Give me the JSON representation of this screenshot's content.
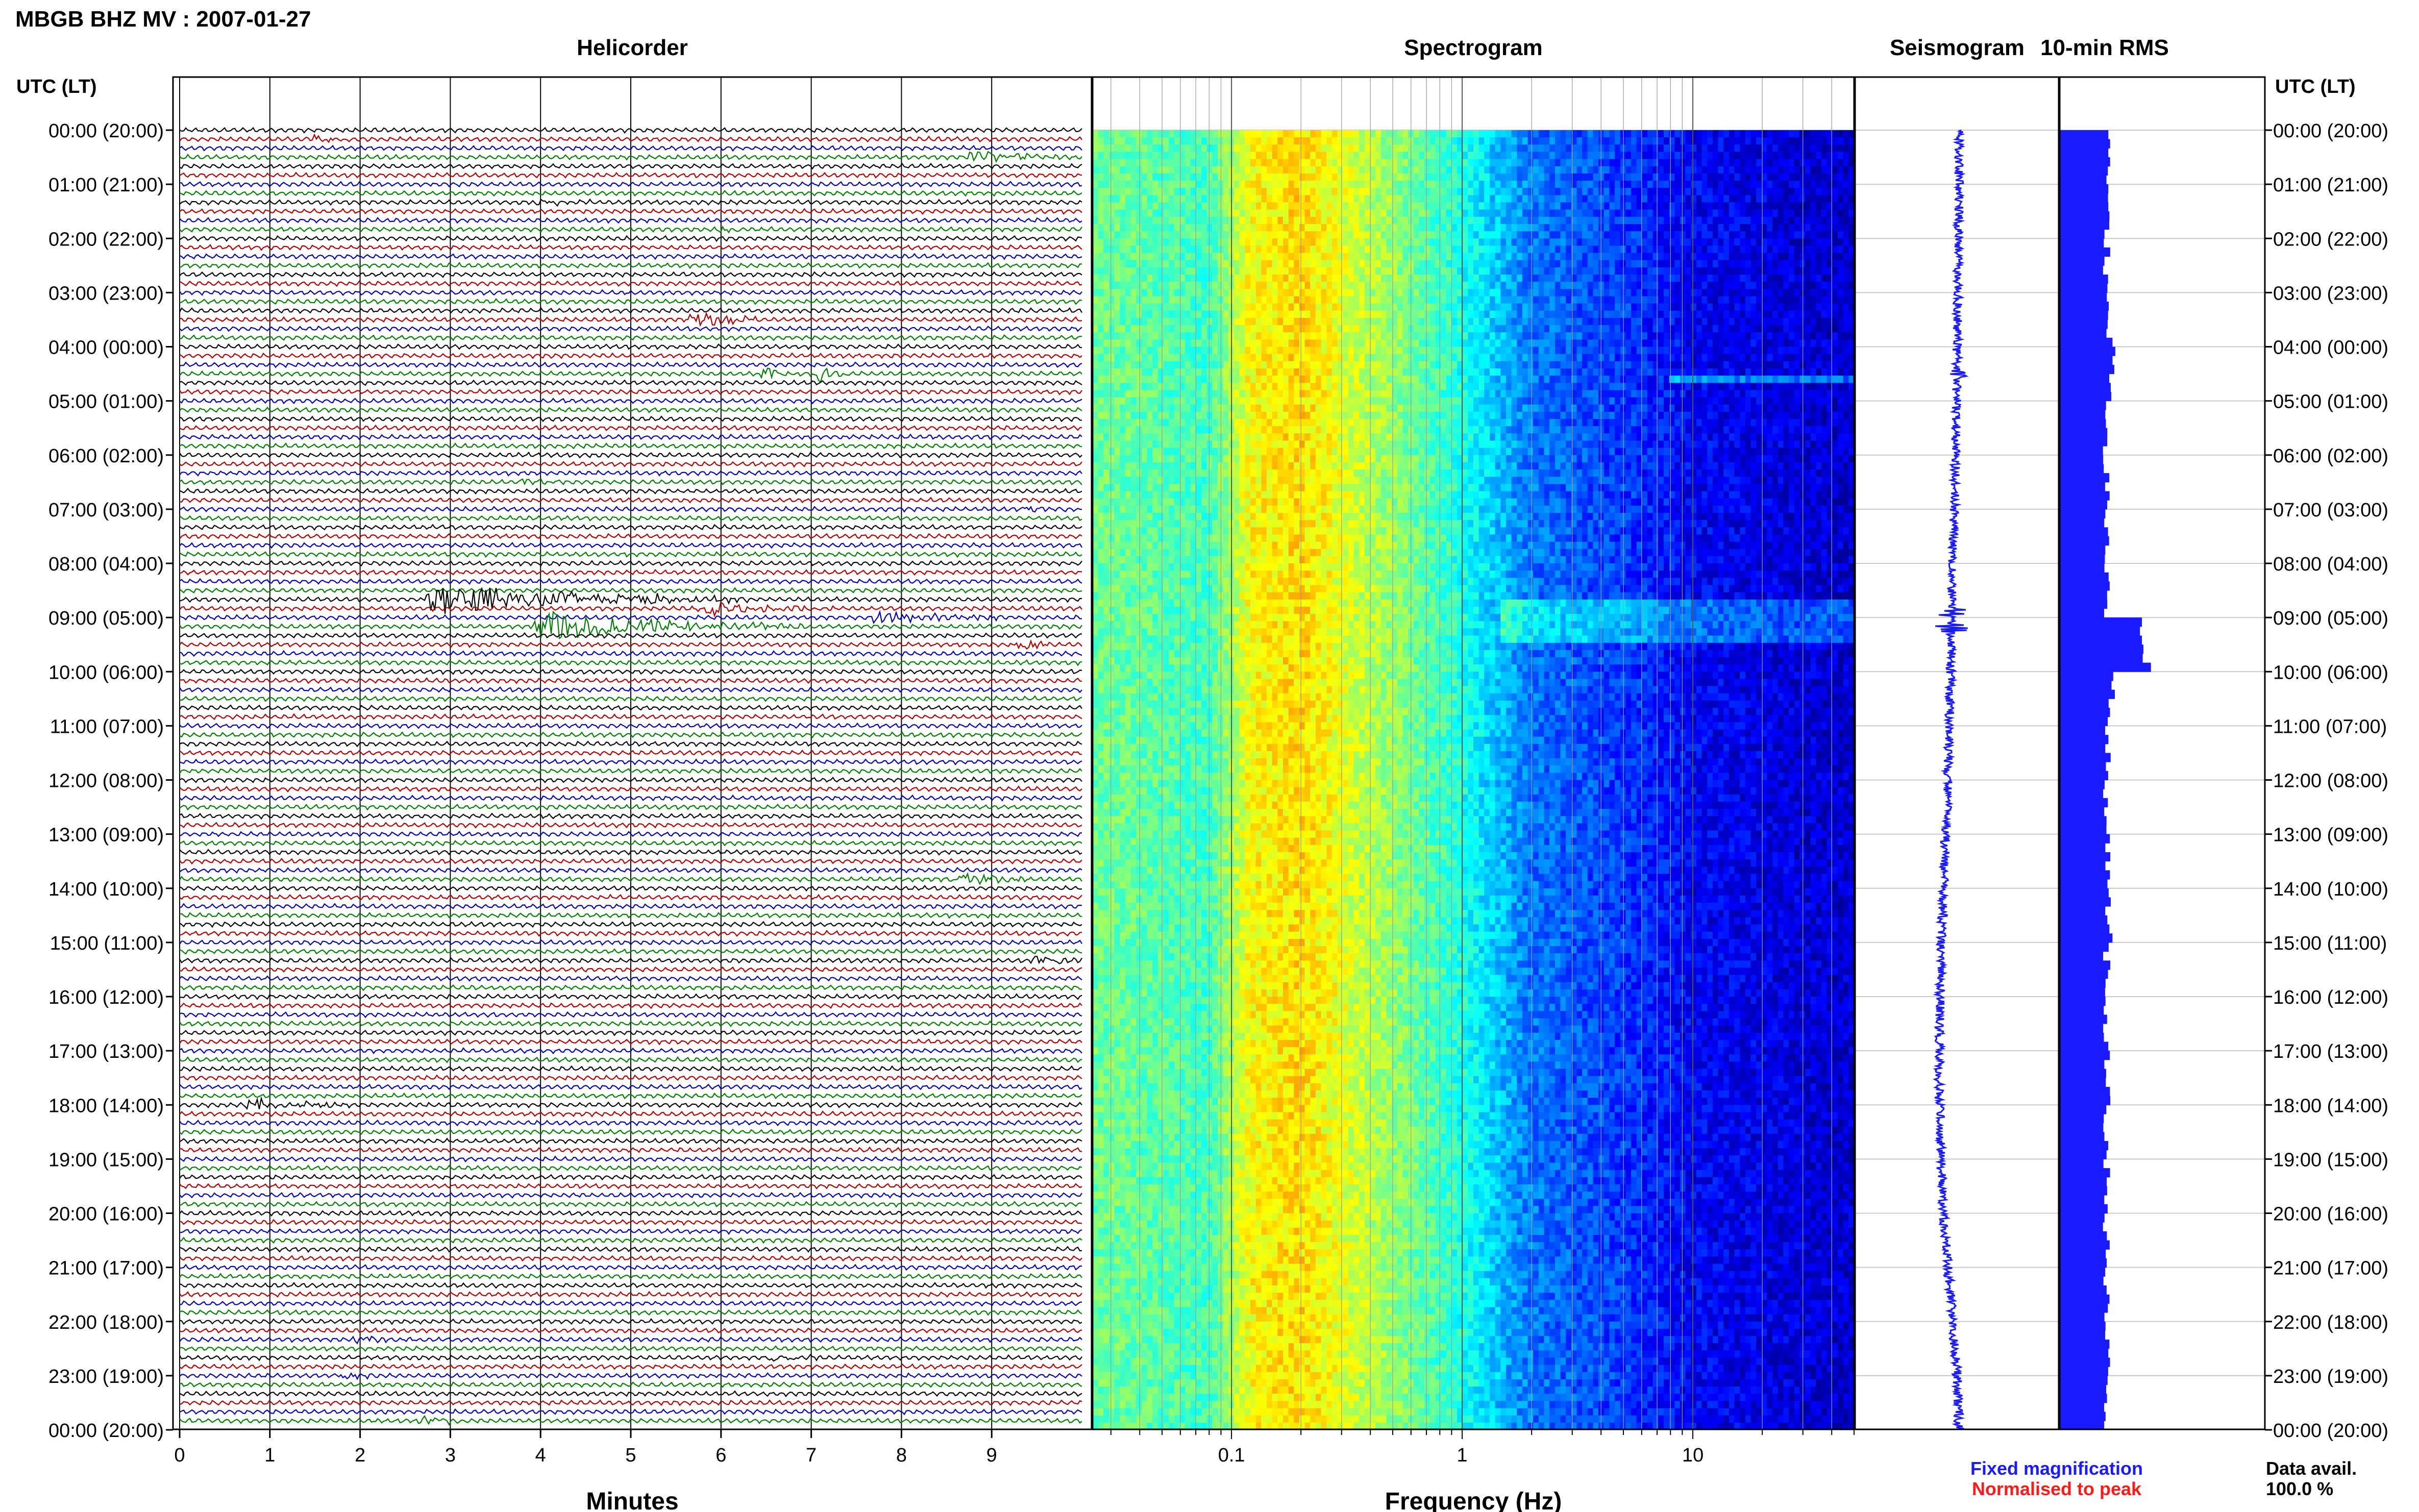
{
  "title": "MBGB BHZ MV : 2007-01-27",
  "left_axis_title": "UTC (LT)",
  "right_axis_title": "UTC (LT)",
  "time_labels": [
    "00:00 (20:00)",
    "01:00 (21:00)",
    "02:00 (22:00)",
    "03:00 (23:00)",
    "04:00 (00:00)",
    "05:00 (01:00)",
    "06:00 (02:00)",
    "07:00 (03:00)",
    "08:00 (04:00)",
    "09:00 (05:00)",
    "10:00 (06:00)",
    "11:00 (07:00)",
    "12:00 (08:00)",
    "13:00 (09:00)",
    "14:00 (10:00)",
    "15:00 (11:00)",
    "16:00 (12:00)",
    "17:00 (13:00)",
    "18:00 (14:00)",
    "19:00 (15:00)",
    "20:00 (16:00)",
    "21:00 (17:00)",
    "22:00 (18:00)",
    "23:00 (19:00)",
    "00:00 (20:00)"
  ],
  "legend": {
    "fixed": "Fixed magnification",
    "normalised": "Normalised to peak",
    "fixed_color": "#1a1aff",
    "normalised_color": "#ff1a1a"
  },
  "data_avail": {
    "label": "Data avail.",
    "value": "100.0 %"
  },
  "colors": {
    "trace_cycle": [
      "#000000",
      "#b00000",
      "#0000b0",
      "#008000"
    ],
    "seismogram": "#1a1aff",
    "rms": "#1a1aff",
    "grid": "#c8c8c8"
  },
  "chart_data": [
    {
      "type": "line",
      "panel": "helicorder",
      "title": "Helicorder",
      "xlabel": "Minutes",
      "x_ticks": [
        "0",
        "1",
        "2",
        "3",
        "4",
        "5",
        "6",
        "7",
        "8",
        "9"
      ],
      "xlim": [
        0,
        10
      ],
      "lines_per_hour": 6,
      "minutes_per_line": 10,
      "events": [
        {
          "hour": 0.17,
          "minute": 1.5,
          "amp": 1.5,
          "len": 0.6
        },
        {
          "hour": 0.5,
          "minute": 8.8,
          "amp": 2.0,
          "len": 1.2
        },
        {
          "hour": 1.33,
          "minute": 4.0,
          "amp": 1.2,
          "len": 0.6
        },
        {
          "hour": 1.83,
          "minute": 6.0,
          "amp": 1.0,
          "len": 0.6
        },
        {
          "hour": 3.5,
          "minute": 5.7,
          "amp": 3.0,
          "len": 0.8
        },
        {
          "hour": 4.5,
          "minute": 6.5,
          "amp": 2.5,
          "len": 0.4
        },
        {
          "hour": 4.5,
          "minute": 7.1,
          "amp": 2.5,
          "len": 0.4
        },
        {
          "hour": 6.5,
          "minute": 3.8,
          "amp": 1.0,
          "len": 0.6
        },
        {
          "hour": 7.0,
          "minute": 9.4,
          "amp": 1.5,
          "len": 0.6
        },
        {
          "hour": 8.67,
          "minute": 2.8,
          "amp": 6.0,
          "len": 3.5
        },
        {
          "hour": 8.83,
          "minute": 5.8,
          "amp": 2.5,
          "len": 1.5
        },
        {
          "hour": 9.0,
          "minute": 7.7,
          "amp": 2.0,
          "len": 1.6
        },
        {
          "hour": 9.17,
          "minute": 4.0,
          "amp": 5.0,
          "len": 3.0
        },
        {
          "hour": 9.5,
          "minute": 9.3,
          "amp": 1.5,
          "len": 0.5
        },
        {
          "hour": 13.83,
          "minute": 8.6,
          "amp": 2.5,
          "len": 0.8
        },
        {
          "hour": 15.33,
          "minute": 9.5,
          "amp": 1.8,
          "len": 0.6
        },
        {
          "hour": 18.0,
          "minute": 0.8,
          "amp": 2.5,
          "len": 1.2
        },
        {
          "hour": 22.33,
          "minute": 2.0,
          "amp": 1.5,
          "len": 0.8
        },
        {
          "hour": 22.67,
          "minute": 6.6,
          "amp": 1.8,
          "len": 0.6
        },
        {
          "hour": 23.0,
          "minute": 1.8,
          "amp": 1.2,
          "len": 0.4
        },
        {
          "hour": 23.83,
          "minute": 2.7,
          "amp": 1.5,
          "len": 0.6
        }
      ]
    },
    {
      "type": "heatmap",
      "panel": "spectrogram",
      "title": "Spectrogram",
      "xlabel": "Frequency (Hz)",
      "x_scale": "log",
      "x_ticks": [
        "0.1",
        "1",
        "10"
      ],
      "xlim": [
        0.025,
        50
      ],
      "colormap": "jet",
      "approx_spectrum": [
        {
          "freq": 0.03,
          "level": 0.48
        },
        {
          "freq": 0.08,
          "level": 0.44
        },
        {
          "freq": 0.12,
          "level": 0.62
        },
        {
          "freq": 0.2,
          "level": 0.66
        },
        {
          "freq": 0.5,
          "level": 0.52
        },
        {
          "freq": 1.0,
          "level": 0.4
        },
        {
          "freq": 2.0,
          "level": 0.24
        },
        {
          "freq": 5.0,
          "level": 0.18
        },
        {
          "freq": 10.0,
          "level": 0.12
        },
        {
          "freq": 40.0,
          "level": 0.08
        }
      ]
    },
    {
      "type": "line",
      "panel": "seismogram",
      "title": "Seismogram",
      "hourly_offset": [
        0.05,
        0.05,
        0.04,
        0.02,
        0.0,
        -0.02,
        -0.05,
        -0.08,
        -0.12,
        -0.15,
        -0.18,
        -0.22,
        -0.26,
        -0.32,
        -0.38,
        -0.44,
        -0.48,
        -0.5,
        -0.5,
        -0.46,
        -0.38,
        -0.26,
        -0.12,
        0.0,
        0.05
      ],
      "spikes_hours": [
        4.5,
        8.9,
        9.2
      ]
    },
    {
      "type": "bar",
      "panel": "rms",
      "title": "10-min RMS",
      "hourly_rms": [
        1.0,
        1.0,
        1.0,
        1.05,
        1.1,
        1.0,
        1.0,
        1.0,
        1.0,
        1.8,
        1.1,
        1.05,
        1.0,
        1.0,
        1.05,
        1.0,
        1.0,
        1.0,
        1.0,
        1.0,
        1.0,
        1.0,
        1.0,
        1.0
      ]
    }
  ]
}
